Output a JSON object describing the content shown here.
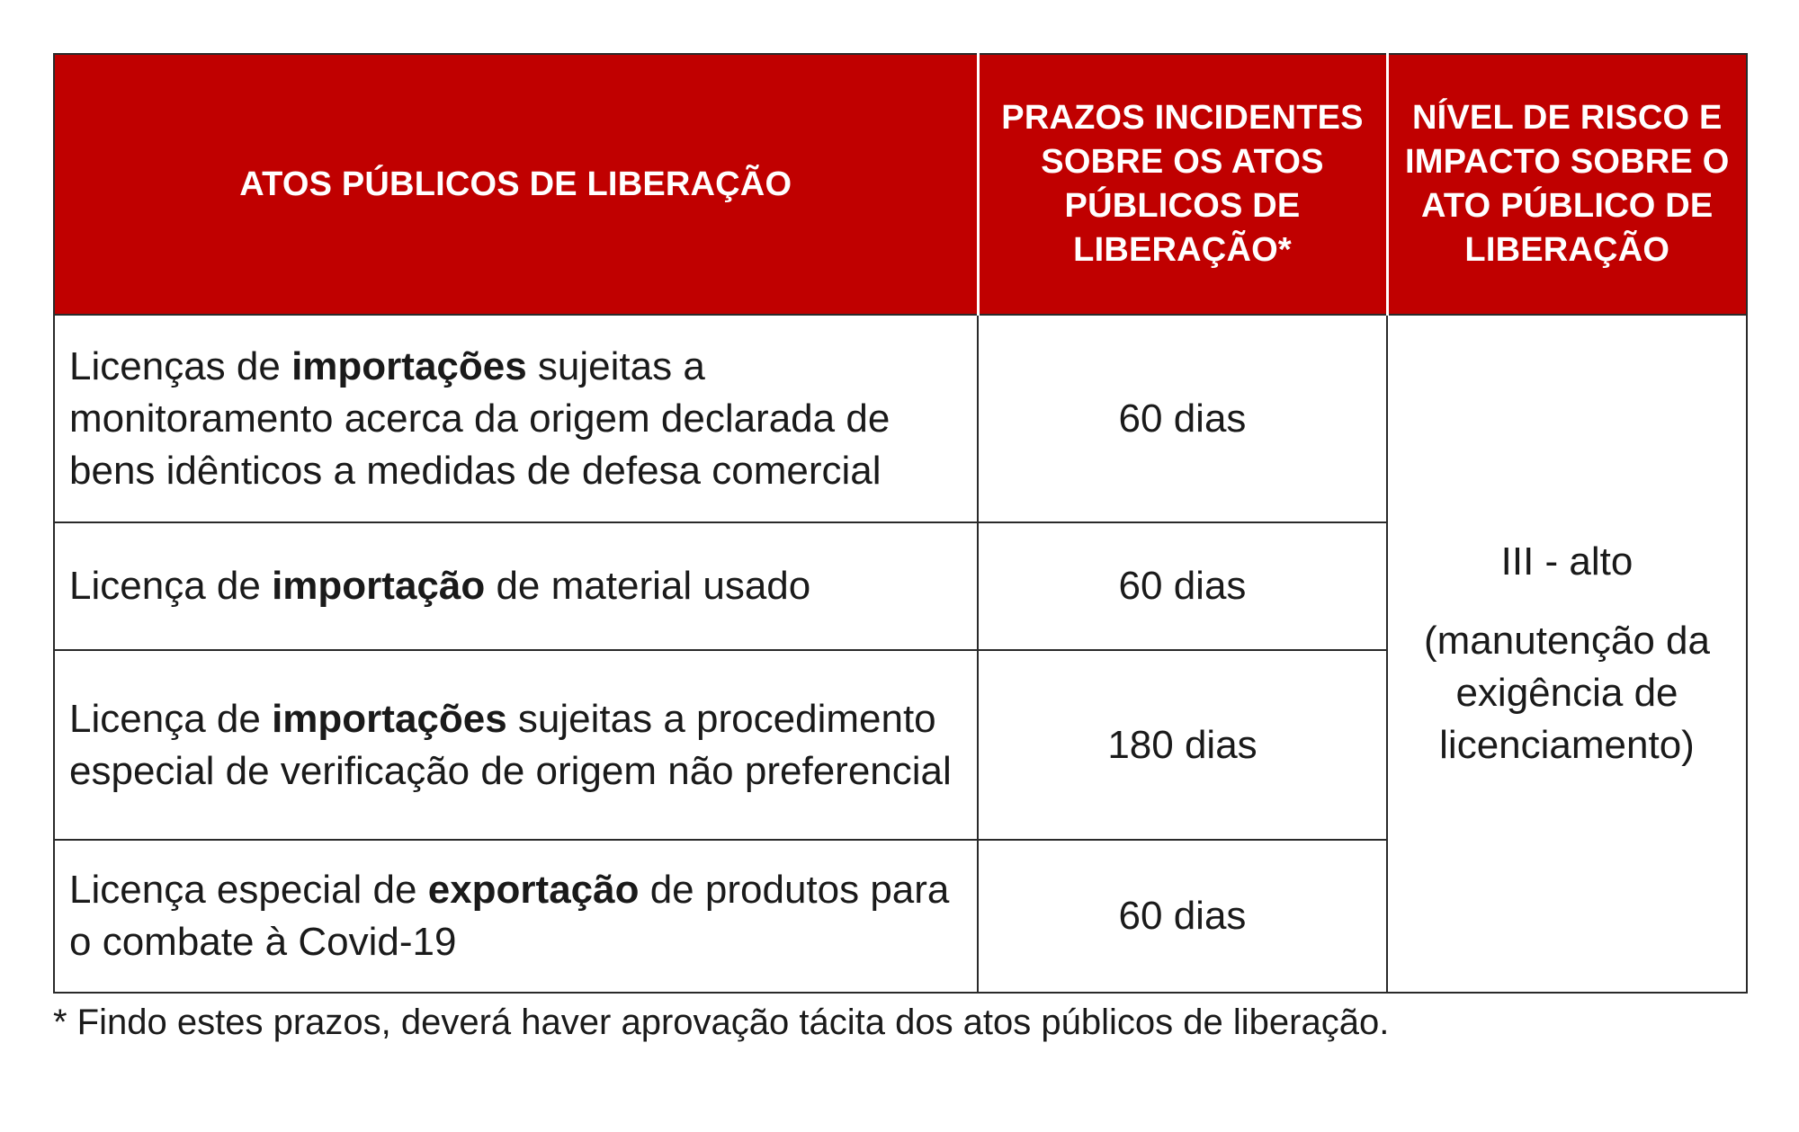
{
  "table": {
    "headers": [
      "ATOS PÚBLICOS DE LIBERAÇÃO",
      "PRAZOS INCIDENTES SOBRE OS ATOS PÚBLICOS DE LIBERAÇÃO*",
      "NÍVEL DE RISCO E IMPACTO SOBRE O ATO PÚBLICO DE LIBERAÇÃO"
    ],
    "rows": [
      {
        "desc_pre": "Licenças de ",
        "desc_bold": "importações",
        "desc_post": " sujeitas a monitoramento acerca da origem declarada de bens idênticos a medidas de defesa comercial",
        "days": "60 dias"
      },
      {
        "desc_pre": "Licença de ",
        "desc_bold": "importação",
        "desc_post": " de material usado",
        "days": "60 dias"
      },
      {
        "desc_pre": "Licença de ",
        "desc_bold": "importações",
        "desc_post": " sujeitas a procedimento especial de verificação de origem não preferencial",
        "days": "180 dias"
      },
      {
        "desc_pre": "Licença especial de ",
        "desc_bold": "exportação",
        "desc_post": " de produtos para o combate à Covid-19",
        "days": "60 dias"
      }
    ],
    "risk": {
      "level": "III - alto",
      "note": "(manutenção da exigência de licenciamento)"
    }
  },
  "footnote": "* Findo estes prazos, deverá haver aprovação tácita dos atos públicos de liberação.",
  "colors": {
    "header_bg": "#c00000",
    "header_text": "#ffffff",
    "border": "#2a2a2a"
  }
}
